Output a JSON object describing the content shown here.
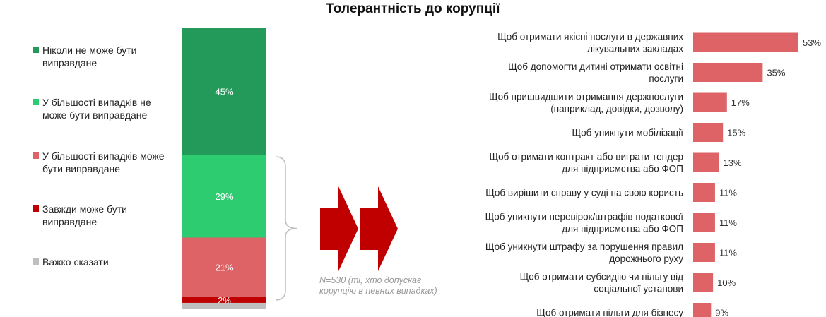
{
  "title": "Толерантність до корупції",
  "colors": {
    "never": "#239A5A",
    "mostly_not": "#2ECC71",
    "mostly_can": "#DD6366",
    "always": "#C00000",
    "hard": "#BFBFBF",
    "bar": "#DD6366",
    "arrow": "#C00000",
    "brace": "#BFBFBF"
  },
  "legend": [
    {
      "label": "Ніколи не може бути виправдане",
      "color": "#239A5A"
    },
    {
      "label": "У більшості випадків не може бути виправдане",
      "color": "#2ECC71"
    },
    {
      "label": "У більшості випадків може бути виправдане",
      "color": "#DD6366"
    },
    {
      "label": "Завжди може бути виправдане",
      "color": "#C00000"
    },
    {
      "label": "Важко сказати",
      "color": "#BFBFBF"
    }
  ],
  "note": "N=530 (ті, хто допускає корупцію в певних випадках)",
  "chart_data": [
    {
      "type": "bar",
      "orientation": "stacked-vertical",
      "series": [
        {
          "name": "Ніколи не може бути виправдане",
          "value": 45,
          "label": "45%"
        },
        {
          "name": "У більшості випадків не може бути виправдане",
          "value": 29,
          "label": "29%"
        },
        {
          "name": "У більшості випадків може бути виправдане",
          "value": 21,
          "label": "21%"
        },
        {
          "name": "Завжди може бути виправдане",
          "value": 2,
          "label": "2%"
        },
        {
          "name": "Важко сказати",
          "value": 2,
          "label": ""
        }
      ],
      "legend_position": "left"
    },
    {
      "type": "bar",
      "orientation": "horizontal",
      "categories": [
        "Щоб отримати якісні послуги в державних лікувальних закладах",
        "Щоб допомогти дитині отримати освітні послуги",
        "Щоб пришвидшити отримання держпослуги (наприклад, довідки, дозволу)",
        "Щоб уникнути мобілізації",
        "Щоб отримати контракт або виграти тендер для підприємства або ФОП",
        "Щоб вирішити справу у суді на свою користь",
        "Щоб уникнути перевірок/штрафів податкової для підприємства або ФОП",
        "Щоб уникнути штрафу за порушення правил дорожнього руху",
        "Щоб отримати субсидію чи пільгу від соціальної установи",
        "Щоб отримати пільги для бізнесу"
      ],
      "category_lines": [
        [
          "Щоб отримати якісні послуги в державних",
          "лікувальних закладах"
        ],
        [
          "Щоб допомогти дитині отримати освітні",
          "послуги"
        ],
        [
          "Щоб пришвидшити отримання держпослуги",
          "(наприклад, довідки, дозволу)"
        ],
        [
          "Щоб уникнути мобілізації"
        ],
        [
          "Щоб отримати контракт або виграти тендер",
          "для підприємства або ФОП"
        ],
        [
          "Щоб вирішити справу у суді на свою користь"
        ],
        [
          "Щоб уникнути перевірок/штрафів податкової",
          "для підприємства або ФОП"
        ],
        [
          "Щоб уникнути штрафу за порушення правил",
          "дорожнього руху"
        ],
        [
          "Щоб отримати субсидію чи пільгу від",
          "соціальної установи"
        ],
        [
          "Щоб отримати пільги для бізнесу"
        ]
      ],
      "values": [
        53,
        35,
        17,
        15,
        13,
        11,
        11,
        11,
        10,
        9
      ],
      "labels": [
        "53%",
        "35%",
        "17%",
        "15%",
        "13%",
        "11%",
        "11%",
        "11%",
        "10%",
        "9%"
      ]
    }
  ]
}
